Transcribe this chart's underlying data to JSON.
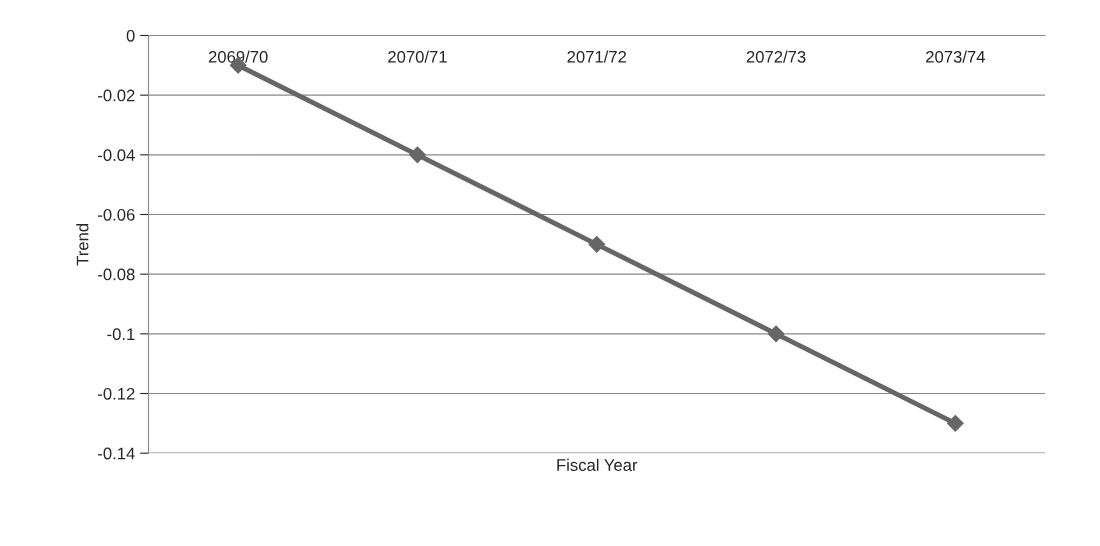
{
  "chart_data": {
    "type": "line",
    "xlabel": "Fiscal Year",
    "ylabel": "Trend",
    "categories": [
      "2069/70",
      "2070/71",
      "2071/72",
      "2072/73",
      "2073/74"
    ],
    "series": [
      {
        "color": "#666666",
        "values": [
          -0.01,
          -0.04,
          -0.07,
          -0.1,
          -0.13
        ]
      }
    ],
    "ylim": [
      -0.14,
      0
    ],
    "yticks": [
      {
        "value": -0.14,
        "label": "-0.14"
      },
      {
        "value": -0.12,
        "label": "-0.12"
      },
      {
        "value": -0.1,
        "label": "-0.1"
      },
      {
        "value": -0.08,
        "label": "-0.08"
      },
      {
        "value": -0.06,
        "label": "-0.06"
      },
      {
        "value": -0.04,
        "label": "-0.04"
      },
      {
        "value": -0.02,
        "label": "-0.02"
      },
      0
    ],
    "grid": "y",
    "marker": "diamond",
    "line_style": "solid",
    "legend": false
  }
}
